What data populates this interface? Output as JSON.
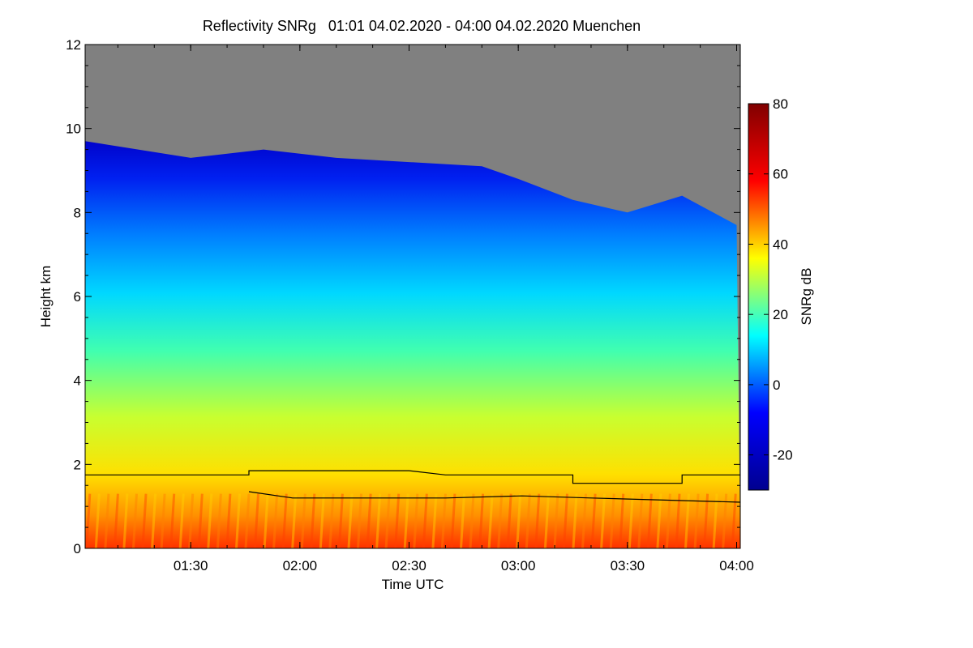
{
  "chart_data": {
    "type": "heatmap",
    "title": "Reflectivity SNRg   01:01 04.02.2020 - 04:00 04.02.2020 Muenchen",
    "xlabel": "Time UTC",
    "ylabel": "Height km",
    "colorbar_label": "SNRg dB",
    "x_range": [
      "01:01",
      "04:00"
    ],
    "x_ticks": [
      "01:30",
      "02:00",
      "02:30",
      "03:00",
      "03:30",
      "04:00"
    ],
    "x_tick_minutes": [
      90,
      120,
      150,
      180,
      210,
      240
    ],
    "x_start_minutes": 61,
    "x_end_minutes": 241,
    "ylim": [
      0,
      12
    ],
    "y_ticks": [
      "0",
      "2",
      "4",
      "6",
      "8",
      "10",
      "12"
    ],
    "y_tick_values": [
      0,
      2,
      4,
      6,
      8,
      10,
      12
    ],
    "colorbar_range": [
      -30,
      80
    ],
    "colorbar_ticks": [
      "-20",
      "0",
      "20",
      "40",
      "60",
      "80"
    ],
    "colorbar_tick_values": [
      -20,
      0,
      20,
      40,
      60,
      80
    ],
    "no_signal_color": "#808080",
    "colormap": [
      "#00008f",
      "#0000ff",
      "#00ffff",
      "#ffff00",
      "#ff0000",
      "#800000"
    ],
    "cloud_top_km": [
      [
        61,
        9.7
      ],
      [
        90,
        9.3
      ],
      [
        110,
        9.5
      ],
      [
        130,
        9.3
      ],
      [
        150,
        9.2
      ],
      [
        170,
        9.1
      ],
      [
        180,
        8.8
      ],
      [
        195,
        8.3
      ],
      [
        210,
        8.0
      ],
      [
        225,
        8.4
      ],
      [
        240,
        7.7
      ]
    ],
    "boundary_layer_upper_km": [
      [
        61,
        1.75
      ],
      [
        106,
        1.75
      ],
      [
        106,
        1.85
      ],
      [
        150,
        1.85
      ],
      [
        160,
        1.75
      ],
      [
        195,
        1.75
      ],
      [
        195,
        1.55
      ],
      [
        225,
        1.55
      ],
      [
        225,
        1.75
      ],
      [
        241,
        1.75
      ]
    ],
    "boundary_layer_lower_km": [
      [
        106,
        1.35
      ],
      [
        118,
        1.2
      ],
      [
        160,
        1.2
      ],
      [
        181,
        1.25
      ],
      [
        200,
        1.2
      ],
      [
        241,
        1.1
      ]
    ]
  }
}
